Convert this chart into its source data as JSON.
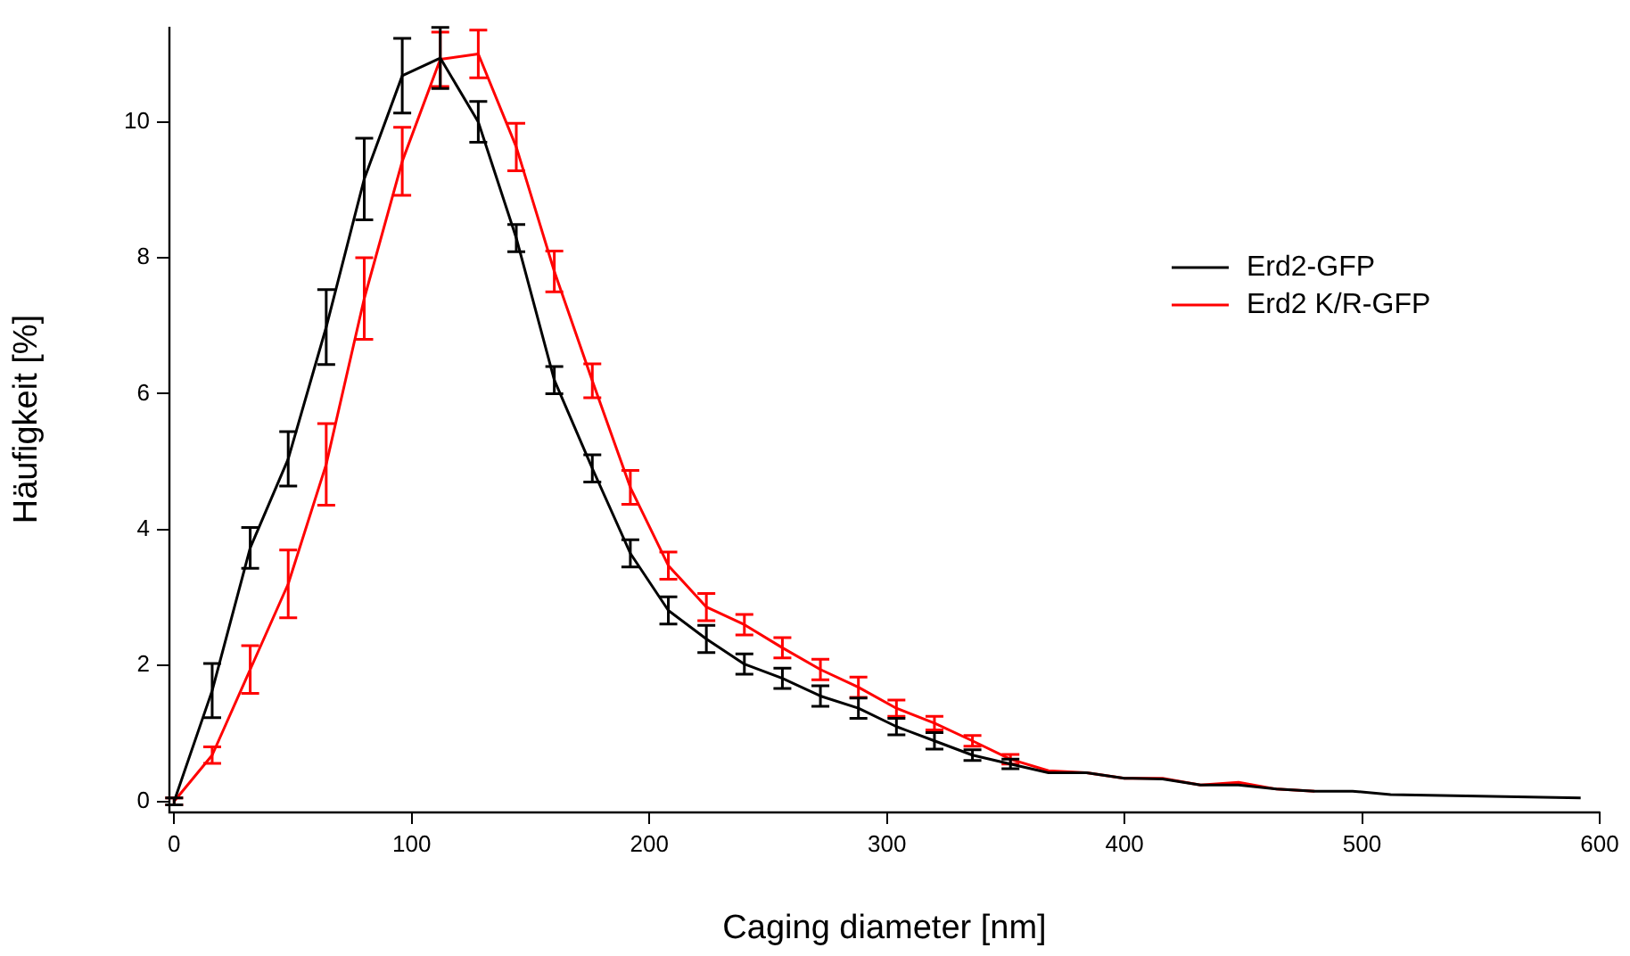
{
  "chart_data": {
    "type": "line",
    "xlabel": "Caging diameter [nm]",
    "ylabel": "Häufigkeit [%]",
    "x": [
      0,
      16,
      32,
      48,
      64,
      80,
      96,
      112,
      128,
      144,
      160,
      176,
      192,
      208,
      224,
      240,
      256,
      272,
      288,
      304,
      320,
      336,
      352,
      368,
      384,
      400,
      416,
      432,
      448,
      464,
      480,
      496,
      512,
      528,
      544,
      560,
      576,
      592
    ],
    "series": [
      {
        "name": "Erd2-GFP",
        "color": "#000000",
        "values": [
          0,
          1.63,
          3.73,
          5.04,
          6.98,
          9.16,
          10.68,
          10.94,
          10.0,
          8.29,
          6.2,
          4.9,
          3.65,
          2.81,
          2.39,
          2.02,
          1.81,
          1.55,
          1.37,
          1.1,
          0.89,
          0.68,
          0.55,
          0.42,
          0.42,
          0.34,
          0.33,
          0.24,
          0.24,
          0.18,
          0.15,
          0.15,
          0.1,
          0.09,
          0.08,
          0.07,
          0.06,
          0.05
        ],
        "errors": [
          0.05,
          0.4,
          0.3,
          0.4,
          0.55,
          0.6,
          0.55,
          0.45,
          0.3,
          0.2,
          0.2,
          0.2,
          0.2,
          0.2,
          0.2,
          0.15,
          0.15,
          0.15,
          0.15,
          0.12,
          0.12,
          0.08,
          0.07,
          null,
          null,
          null,
          null,
          null,
          null,
          null,
          null,
          null,
          null,
          null,
          null,
          null,
          null,
          null
        ]
      },
      {
        "name": "Erd2 K/R-GFP",
        "color": "#ff0000",
        "values": [
          0,
          0.68,
          1.94,
          3.2,
          4.96,
          7.4,
          9.42,
          10.92,
          11.0,
          9.63,
          7.8,
          6.19,
          4.62,
          3.47,
          2.86,
          2.6,
          2.26,
          1.94,
          1.68,
          1.37,
          1.15,
          0.89,
          0.62,
          0.45,
          0.42,
          0.34,
          0.34,
          0.24,
          0.28,
          0.18,
          0.15,
          null,
          null,
          null,
          null,
          null,
          null,
          null
        ],
        "errors": [
          0.05,
          0.12,
          0.35,
          0.5,
          0.6,
          0.6,
          0.5,
          0.4,
          0.35,
          0.35,
          0.3,
          0.25,
          0.25,
          0.2,
          0.2,
          0.15,
          0.15,
          0.15,
          0.15,
          0.12,
          0.1,
          0.08,
          0.07,
          null,
          null,
          null,
          null,
          null,
          null,
          null,
          null,
          null,
          null,
          null,
          null,
          null,
          null,
          null
        ]
      }
    ],
    "xlim": [
      -2,
      600
    ],
    "xticks": [
      0,
      100,
      200,
      300,
      400,
      500,
      600
    ],
    "ylim": [
      -0.15,
      11.4
    ],
    "yticks": [
      0,
      2,
      4,
      6,
      8,
      10
    ],
    "grid": false,
    "legend": "right"
  }
}
